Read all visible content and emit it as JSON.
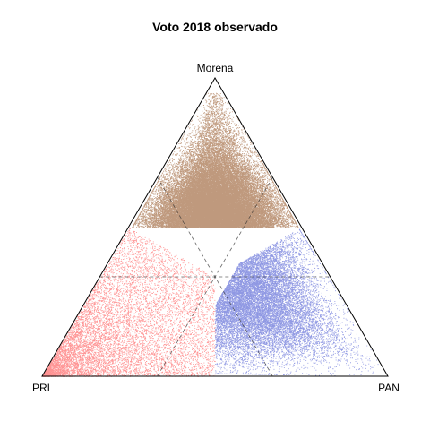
{
  "chart_data": {
    "type": "scatter",
    "subtype": "ternary",
    "title": "Voto 2018 observado",
    "vertices": {
      "top": "Morena",
      "left": "PRI",
      "right": "PAN"
    },
    "series": [
      {
        "name": "Morena",
        "color": "#8B4513",
        "point_count": 45000,
        "share_range": [
          0.33,
          0.9
        ],
        "mode": "top"
      },
      {
        "name": "PRI",
        "color": "#FF3B3B",
        "point_count": 10000,
        "share_range": [
          0.33,
          1.0
        ],
        "mode": "left"
      },
      {
        "name": "PAN",
        "color": "#3344CC",
        "point_count": 16000,
        "share_range": [
          0.33,
          0.88
        ],
        "mode": "right"
      }
    ],
    "grid_lines": [
      {
        "style": "dashed",
        "description": "one-third reference lines for each component"
      }
    ],
    "legend": "none"
  }
}
